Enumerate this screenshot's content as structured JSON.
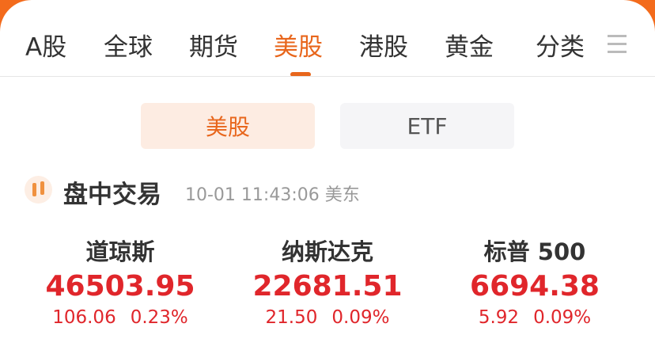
{
  "tabs": [
    {
      "label": "A股"
    },
    {
      "label": "全球"
    },
    {
      "label": "期货"
    },
    {
      "label": "美股",
      "active": true
    },
    {
      "label": "港股"
    },
    {
      "label": "黄金"
    },
    {
      "label": "分类"
    }
  ],
  "segments": [
    "美股",
    "ETF"
  ],
  "section": {
    "title": "盘中交易",
    "time": "10-01 11:43:06 美东"
  },
  "indices": [
    {
      "name": "道琼斯",
      "price": "46503.95",
      "change": "106.06",
      "pct": "0.23%"
    },
    {
      "name": "纳斯达克",
      "price": "22681.51",
      "change": "21.50",
      "pct": "0.09%"
    },
    {
      "name": "标普 500",
      "price": "6694.38",
      "change": "5.92",
      "pct": "0.09%"
    }
  ],
  "colors": {
    "accent": "#e8661c",
    "up": "#e0262b"
  }
}
